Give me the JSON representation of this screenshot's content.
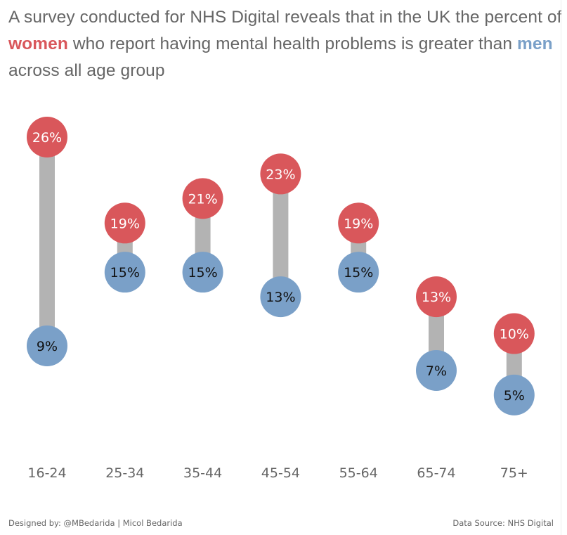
{
  "title": {
    "part1": "A survey conducted for NHS Digital reveals that in the UK the percent of ",
    "highlight_women": "women",
    "part2": " who report having  mental health problems is greater than ",
    "highlight_men": "men",
    "part3": " across all age group"
  },
  "footer": {
    "left": "Designed by: @MBedarida | Micol Bedarida",
    "right": "Data Source: NHS Digital"
  },
  "colors": {
    "women": "#d9575b",
    "men": "#7aa0c8",
    "connector": "#b3b3b3",
    "axis_text": "#666666"
  },
  "chart_data": {
    "type": "dumbbell",
    "title": "A survey conducted for NHS Digital reveals that in the UK the percent of women who report having mental health problems is greater than men across all age group",
    "xlabel": "",
    "ylabel": "",
    "categories": [
      "16-24",
      "25-34",
      "35-44",
      "45-54",
      "55-64",
      "65-74",
      "75+"
    ],
    "series": [
      {
        "name": "Women",
        "values": [
          26,
          19,
          21,
          23,
          19,
          13,
          10
        ],
        "labels": [
          "26%",
          "19%",
          "21%",
          "23%",
          "19%",
          "13%",
          "10%"
        ]
      },
      {
        "name": "Men",
        "values": [
          9,
          15,
          15,
          13,
          15,
          7,
          5
        ],
        "labels": [
          "9%",
          "15%",
          "15%",
          "13%",
          "15%",
          "7%",
          "5%"
        ]
      }
    ],
    "unit": "%",
    "grid": false,
    "legend": "none (encoded in title colors)"
  }
}
